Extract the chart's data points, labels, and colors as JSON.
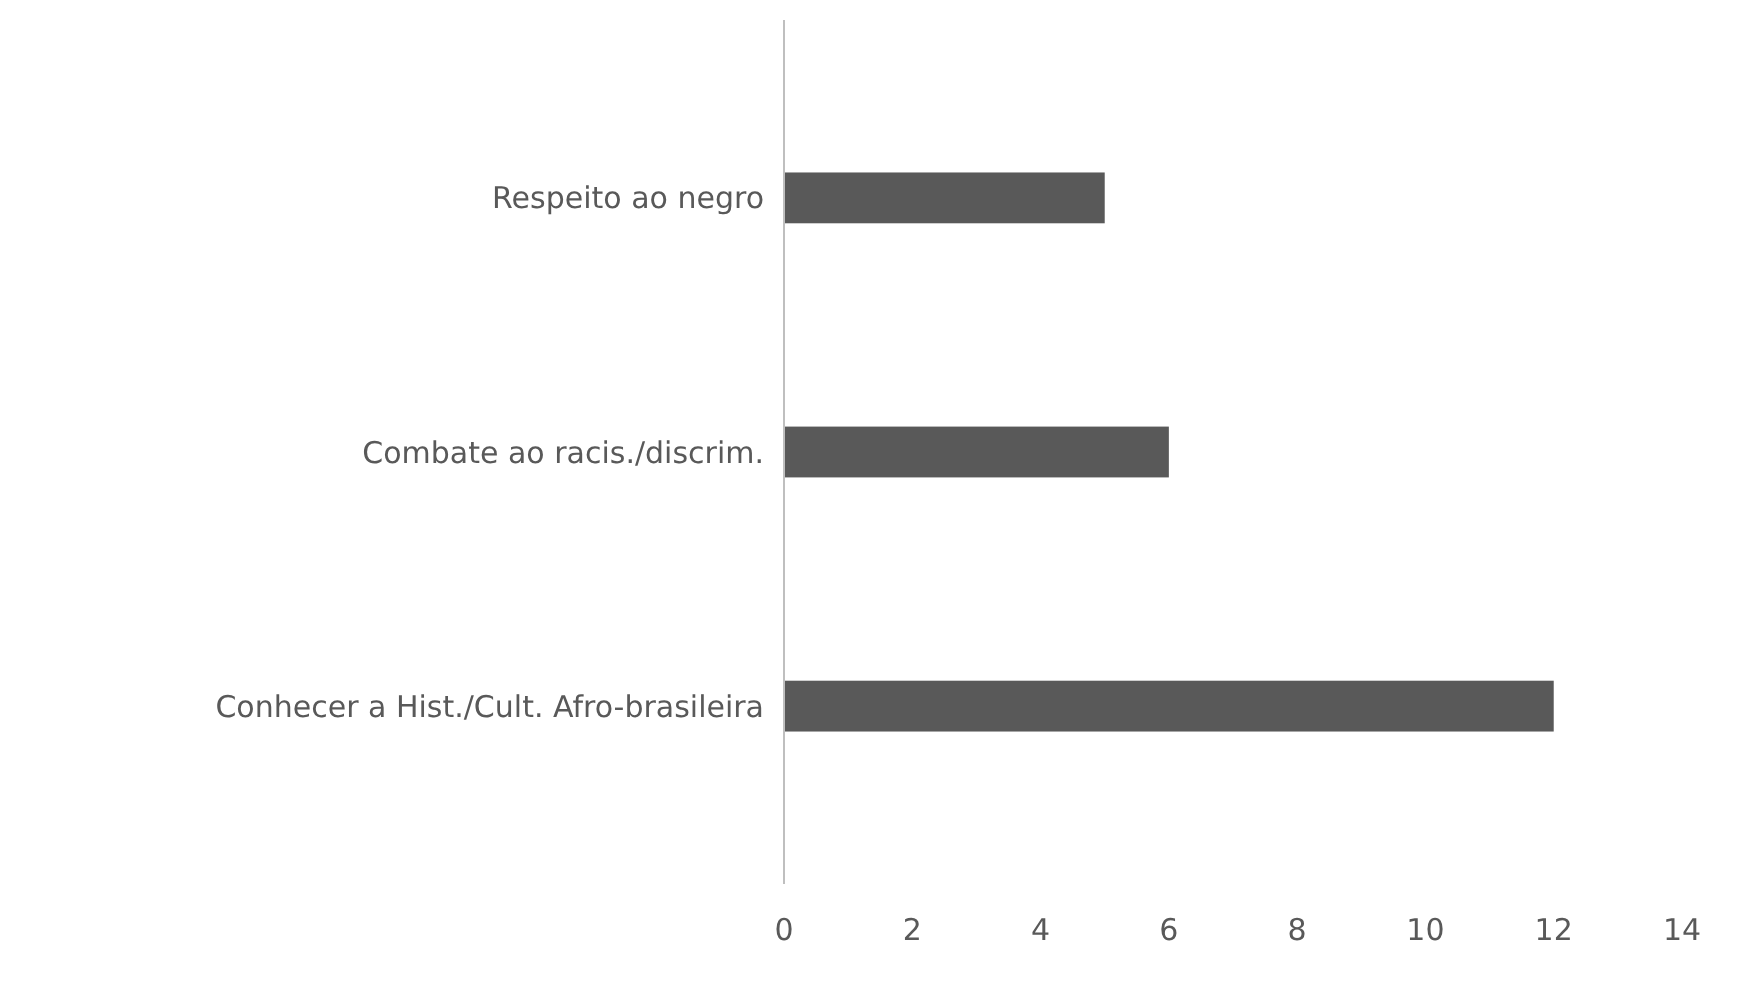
{
  "chart_data": {
    "type": "bar",
    "orientation": "horizontal",
    "categories": [
      "Respeito ao negro",
      "Combate ao racis./discrim.",
      "Conhecer a Hist./Cult. Afro-brasileira"
    ],
    "values": [
      5,
      6,
      12
    ],
    "color": "#595959",
    "xlim": [
      0,
      14
    ],
    "xticks": [
      0,
      2,
      4,
      6,
      8,
      10,
      12,
      14
    ],
    "grid": false
  }
}
